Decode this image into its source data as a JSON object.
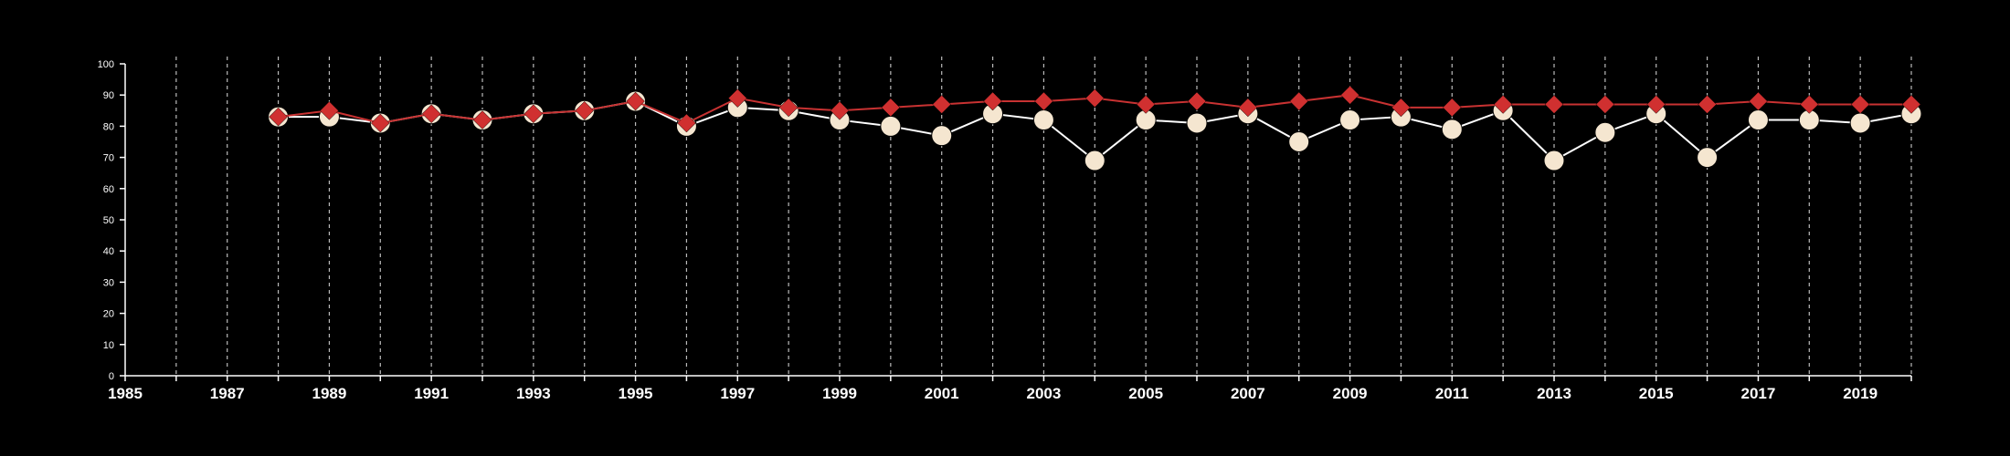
{
  "chart_data": {
    "type": "line",
    "title": "",
    "xlabel": "",
    "ylabel": "",
    "xlim": [
      1985,
      2020
    ],
    "ylim": [
      0,
      100
    ],
    "x_ticks": [
      1985,
      1987,
      1989,
      1991,
      1993,
      1995,
      1997,
      1999,
      2001,
      2003,
      2005,
      2007,
      2009,
      2011,
      2013,
      2015,
      2017,
      2019
    ],
    "y_ticks": [
      0,
      10,
      20,
      30,
      40,
      50,
      60,
      70,
      80,
      90,
      100
    ],
    "x_tick_labels": [
      "1985",
      "1987",
      "1989",
      "1991",
      "1993",
      "1995",
      "1997",
      "1999",
      "2001",
      "2003",
      "2005",
      "2007",
      "2009",
      "2011",
      "2013",
      "2015",
      "2017",
      "2019"
    ],
    "y_tick_labels": [
      "0",
      "10",
      "20",
      "30",
      "40",
      "50",
      "60",
      "70",
      "80",
      "90",
      "100"
    ],
    "grid": "vertical dashed at every year",
    "background": "#000000",
    "axis_color": "#ffffff",
    "x": [
      1988,
      1989,
      1990,
      1991,
      1992,
      1993,
      1994,
      1995,
      1996,
      1997,
      1998,
      1999,
      2000,
      2001,
      2002,
      2003,
      2004,
      2005,
      2006,
      2007,
      2008,
      2009,
      2010,
      2011,
      2012,
      2013,
      2014,
      2015,
      2016,
      2017,
      2018,
      2019,
      2020
    ],
    "series": [
      {
        "marker": "circle",
        "color": "#f5e6d0",
        "line_color": "#ffffff",
        "values": [
          83,
          83,
          81,
          84,
          82,
          84,
          85,
          88,
          80,
          86,
          85,
          82,
          80,
          77,
          84,
          82,
          69,
          82,
          81,
          84,
          75,
          82,
          83,
          79,
          85,
          69,
          78,
          84,
          70,
          82,
          82,
          81,
          84
        ]
      },
      {
        "marker": "diamond",
        "color": "#d03030",
        "line_color": "#c83232",
        "values": [
          83,
          85,
          81,
          84,
          82,
          84,
          85,
          88,
          81,
          89,
          86,
          85,
          86,
          87,
          88,
          88,
          89,
          87,
          88,
          86,
          88,
          90,
          86,
          86,
          87,
          87,
          87,
          87,
          87,
          88,
          87,
          87,
          87
        ]
      }
    ]
  }
}
